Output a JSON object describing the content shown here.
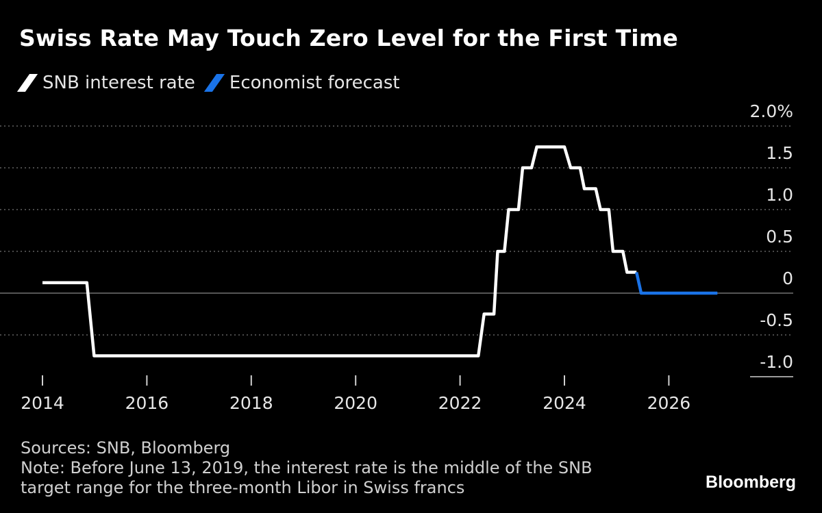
{
  "title": "Swiss Rate May Touch Zero Level for the First Time",
  "legend": [
    {
      "label": "SNB interest rate",
      "color": "#ffffff"
    },
    {
      "label": "Economist forecast",
      "color": "#1a73e8"
    }
  ],
  "footer": {
    "sources": "Sources: SNB, Bloomberg",
    "note_line1": "Note: Before June 13, 2019, the interest rate is the middle of the SNB",
    "note_line2": "target range for the three-month Libor in Swiss francs"
  },
  "brand": "Bloomberg",
  "chart_data": {
    "type": "line",
    "title": "Swiss Rate May Touch Zero Level for the First Time",
    "xlabel": "",
    "ylabel": "",
    "xlim": [
      2014,
      2027.5
    ],
    "ylim": [
      -1.0,
      2.0
    ],
    "x_ticks": [
      2014,
      2016,
      2018,
      2020,
      2022,
      2024,
      2026
    ],
    "x_tick_labels": [
      "2014",
      "2016",
      "2018",
      "2020",
      "2022",
      "2024",
      "2026"
    ],
    "y_ticks": [
      2.0,
      1.5,
      1.0,
      0.5,
      0,
      -0.5,
      -1.0
    ],
    "y_tick_labels": [
      "2.0%",
      "1.5",
      "1.0",
      "0.5",
      "0",
      "-0.5",
      "-1.0"
    ],
    "series": [
      {
        "name": "SNB interest rate",
        "color": "#ffffff",
        "step": true,
        "x": [
          2014.0,
          2014.85,
          2014.99,
          2015.05,
          2022.35,
          2022.46,
          2022.65,
          2022.72,
          2022.85,
          2022.93,
          2023.12,
          2023.2,
          2023.37,
          2023.47,
          2024.0,
          2024.12,
          2024.3,
          2024.38,
          2024.6,
          2024.69,
          2024.85,
          2024.93,
          2025.12,
          2025.2,
          2025.38
        ],
        "y": [
          0.125,
          0.125,
          -0.75,
          -0.75,
          -0.75,
          -0.25,
          -0.25,
          0.5,
          0.5,
          1.0,
          1.0,
          1.5,
          1.5,
          1.75,
          1.75,
          1.5,
          1.5,
          1.25,
          1.25,
          1.0,
          1.0,
          0.5,
          0.5,
          0.25,
          0.25
        ]
      },
      {
        "name": "Economist forecast",
        "color": "#1a73e8",
        "step": true,
        "x": [
          2025.38,
          2025.47,
          2026.93
        ],
        "y": [
          0.25,
          0,
          0
        ]
      }
    ]
  }
}
